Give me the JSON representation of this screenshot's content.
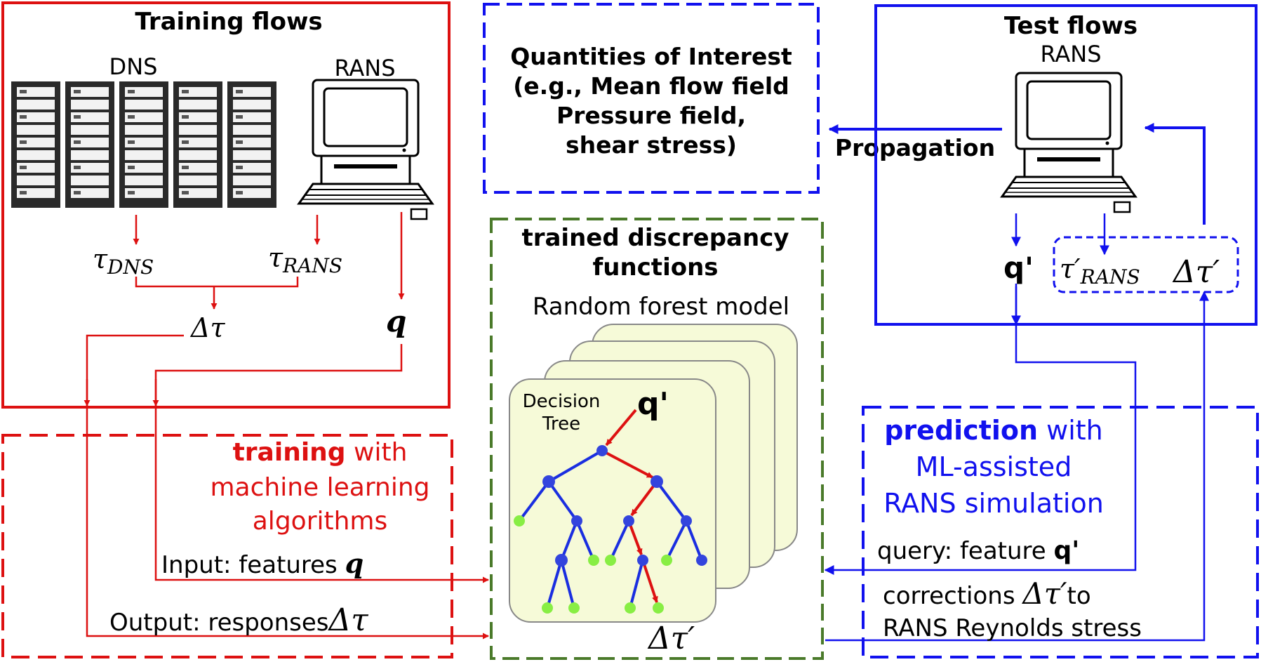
{
  "training_flows": {
    "title": "Training flows",
    "dns_label": "DNS",
    "rans_label": "RANS",
    "tau_dns": "τ",
    "tau_dns_sub": "DNS",
    "tau_rans": "τ",
    "tau_rans_sub": "RANS",
    "delta_tau": "Δτ",
    "q": "q"
  },
  "qoi": {
    "lines": [
      "Quantities of Interest",
      "(e.g., Mean flow field",
      "Pressure field,",
      "shear stress)"
    ]
  },
  "propagation": "Propagation",
  "test_flows": {
    "title": "Test flows",
    "rans_label": "RANS",
    "q_prime": "q'",
    "tau_prime": "τ′",
    "tau_prime_sub": "RANS",
    "delta_tau_prime": "Δτ′"
  },
  "discrepancy": {
    "title_line1": "trained discrepancy",
    "title_line2": "functions",
    "model_label": "Random forest model",
    "tree_label_line1": "Decision",
    "tree_label_line2": "Tree",
    "q_prime": "q'",
    "delta_tau_prime": "Δτ′"
  },
  "training": {
    "title_bold": "training",
    "title_rest": " with",
    "line2": "machine learning",
    "line3": "algorithms",
    "input_prefix": "Input: features ",
    "input_var": "q",
    "output_prefix": "Output: responses",
    "output_var": "Δτ"
  },
  "prediction": {
    "title_bold": "prediction",
    "title_rest": " with",
    "line2": "ML-assisted",
    "line3": "RANS simulation",
    "query_prefix": "query: feature ",
    "query_var": "q'",
    "corrections_prefix": "corrections ",
    "corrections_var": "Δτ′",
    "corrections_suffix": "to",
    "line_last": "RANS Reynolds stress"
  },
  "colors": {
    "red": "#dd1111",
    "blue": "#1111ee",
    "green": "#4a7a2a",
    "card_fill": "#f6fad8",
    "node_blue": "#3344dd",
    "node_green": "#88ee44"
  }
}
